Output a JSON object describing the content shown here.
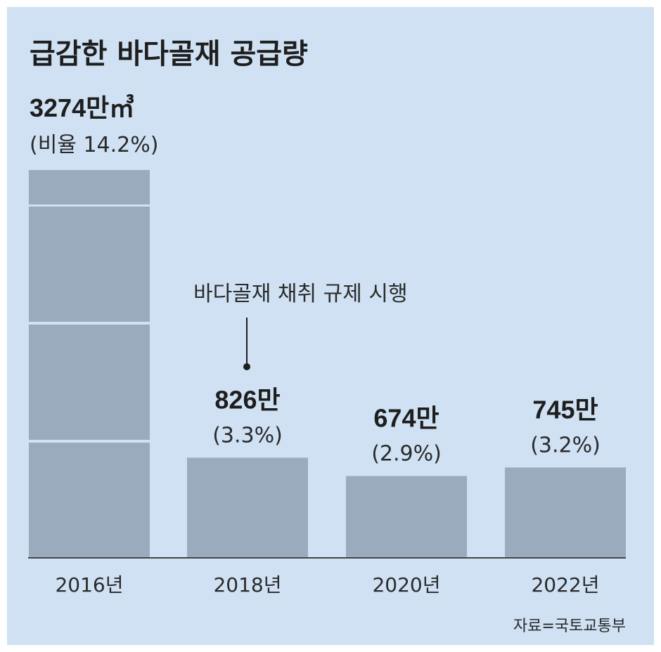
{
  "chart_data": {
    "type": "bar",
    "title": "급감한 바다골재 공급량",
    "categories": [
      "2016년",
      "2018년",
      "2020년",
      "2022년"
    ],
    "values": [
      3274,
      826,
      674,
      745
    ],
    "value_labels": [
      "3274만㎥",
      "826만",
      "674만",
      "745만"
    ],
    "share_labels": [
      "(비율 14.2%)",
      "(3.3%)",
      "(2.9%)",
      "(3.2%)"
    ],
    "shares": [
      14.2,
      3.3,
      2.9,
      3.2
    ],
    "annotation": "바다골재 채취 규제 시행",
    "annotation_category": "2018년",
    "axis_break_on": "2016년",
    "source": "자료=국토교통부",
    "colors": {
      "background": "#cfe1f3",
      "bar": "#9aabbd",
      "axis": "#444444",
      "text": "#1e1e1e"
    }
  }
}
